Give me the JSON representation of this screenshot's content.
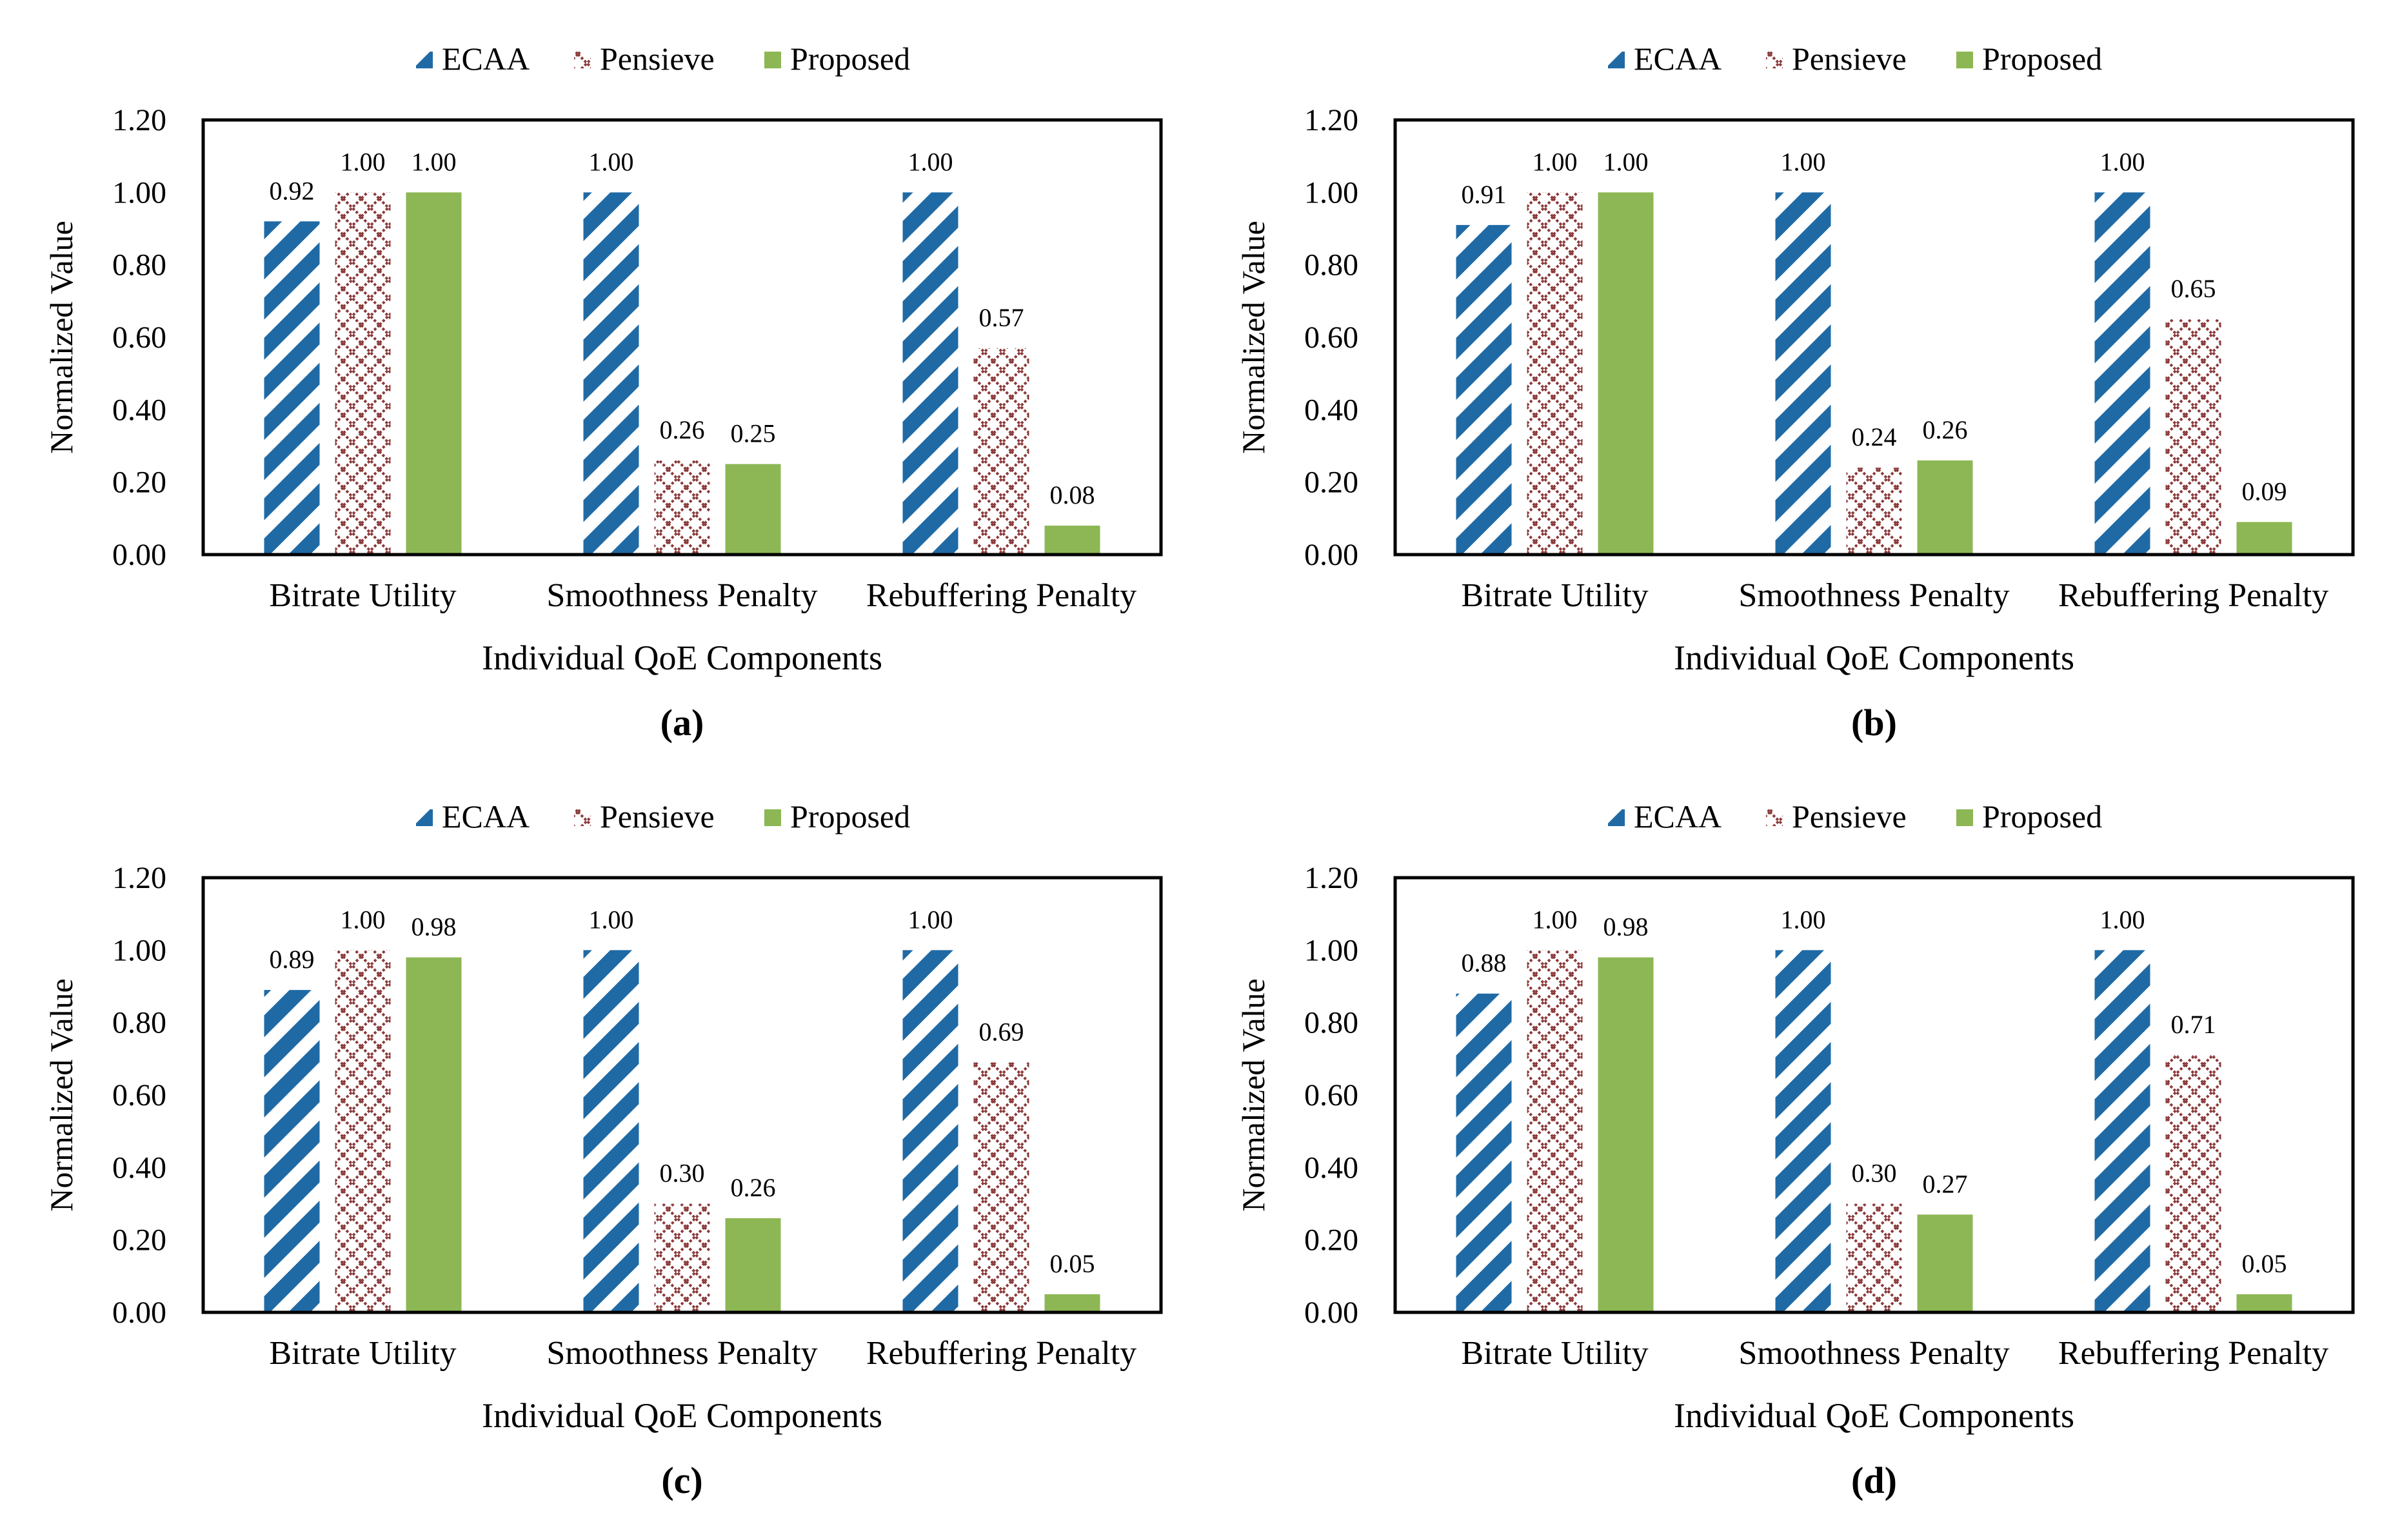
{
  "chart_data": [
    {
      "type": "bar",
      "panel_label": "(a)",
      "categories": [
        "Bitrate Utility",
        "Smoothness Penalty",
        "Rebuffering Penalty"
      ],
      "series": [
        {
          "name": "ECAA",
          "values": [
            0.92,
            1.0,
            1.0
          ],
          "labels": [
            "0.92",
            "1.00",
            "1.00"
          ]
        },
        {
          "name": "Pensieve",
          "values": [
            1.0,
            0.26,
            0.57
          ],
          "labels": [
            "1.00",
            "0.26",
            "0.57"
          ]
        },
        {
          "name": "Proposed",
          "values": [
            1.0,
            0.25,
            0.08
          ],
          "labels": [
            "1.00",
            "0.25",
            "0.08"
          ]
        }
      ],
      "xlabel": "Individual QoE Components",
      "ylabel": "Normalized Value",
      "ylim": [
        0,
        1.2
      ],
      "yticks": [
        "0.00",
        "0.20",
        "0.40",
        "0.60",
        "0.80",
        "1.00",
        "1.20"
      ],
      "legend": "top"
    },
    {
      "type": "bar",
      "panel_label": "(b)",
      "categories": [
        "Bitrate Utility",
        "Smoothness Penalty",
        "Rebuffering Penalty"
      ],
      "series": [
        {
          "name": "ECAA",
          "values": [
            0.91,
            1.0,
            1.0
          ],
          "labels": [
            "0.91",
            "1.00",
            "1.00"
          ]
        },
        {
          "name": "Pensieve",
          "values": [
            1.0,
            0.24,
            0.65
          ],
          "labels": [
            "1.00",
            "0.24",
            "0.65"
          ]
        },
        {
          "name": "Proposed",
          "values": [
            1.0,
            0.26,
            0.09
          ],
          "labels": [
            "1.00",
            "0.26",
            "0.09"
          ]
        }
      ],
      "xlabel": "Individual QoE Components",
      "ylabel": "Normalized Value",
      "ylim": [
        0,
        1.2
      ],
      "yticks": [
        "0.00",
        "0.20",
        "0.40",
        "0.60",
        "0.80",
        "1.00",
        "1.20"
      ],
      "legend": "top"
    },
    {
      "type": "bar",
      "panel_label": "(c)",
      "categories": [
        "Bitrate Utility",
        "Smoothness Penalty",
        "Rebuffering Penalty"
      ],
      "series": [
        {
          "name": "ECAA",
          "values": [
            0.89,
            1.0,
            1.0
          ],
          "labels": [
            "0.89",
            "1.00",
            "1.00"
          ]
        },
        {
          "name": "Pensieve",
          "values": [
            1.0,
            0.3,
            0.69
          ],
          "labels": [
            "1.00",
            "0.30",
            "0.69"
          ]
        },
        {
          "name": "Proposed",
          "values": [
            0.98,
            0.26,
            0.05
          ],
          "labels": [
            "0.98",
            "0.26",
            "0.05"
          ]
        }
      ],
      "xlabel": "Individual QoE Components",
      "ylabel": "Normalized Value",
      "ylim": [
        0,
        1.2
      ],
      "yticks": [
        "0.00",
        "0.20",
        "0.40",
        "0.60",
        "0.80",
        "1.00",
        "1.20"
      ],
      "legend": "top"
    },
    {
      "type": "bar",
      "panel_label": "(d)",
      "categories": [
        "Bitrate Utility",
        "Smoothness Penalty",
        "Rebuffering Penalty"
      ],
      "series": [
        {
          "name": "ECAA",
          "values": [
            0.88,
            1.0,
            1.0
          ],
          "labels": [
            "0.88",
            "1.00",
            "1.00"
          ]
        },
        {
          "name": "Pensieve",
          "values": [
            1.0,
            0.3,
            0.71
          ],
          "labels": [
            "1.00",
            "0.30",
            "0.71"
          ]
        },
        {
          "name": "Proposed",
          "values": [
            0.98,
            0.27,
            0.05
          ],
          "labels": [
            "0.98",
            "0.27",
            "0.05"
          ]
        }
      ],
      "xlabel": "Individual QoE Components",
      "ylabel": "Normalized Value",
      "ylim": [
        0,
        1.2
      ],
      "yticks": [
        "0.00",
        "0.20",
        "0.40",
        "0.60",
        "0.80",
        "1.00",
        "1.20"
      ],
      "legend": "top"
    }
  ],
  "colors": {
    "ecaa": "#1f6aa5",
    "pensieve": "#8b3a3a",
    "proposed": "#8db754",
    "axis": "#000000"
  }
}
